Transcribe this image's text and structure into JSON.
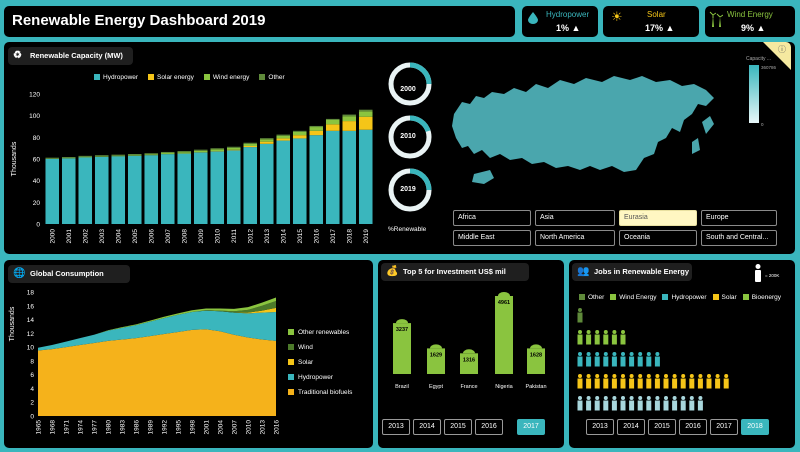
{
  "header": {
    "title": "Renewable Energy Dashboard 2019",
    "kpis": [
      {
        "label": "Hydropower",
        "value": "1%",
        "icon": "water-drop-icon"
      },
      {
        "label": "Solar",
        "value": "17%",
        "icon": "sun-icon"
      },
      {
        "label": "Wind Energy",
        "value": "9%",
        "icon": "wind-turbine-icon"
      }
    ]
  },
  "colors": {
    "hydro": "#3ab6bd",
    "solar": "#f5c518",
    "wind": "#8ac43f",
    "other": "#5f8a3a",
    "biofuel": "#f5b21b",
    "bg": "#000000"
  },
  "capacity_panel": {
    "title": "Renewable Capacity (MW)"
  },
  "donuts": {
    "years": [
      "2000",
      "2010",
      "2019"
    ],
    "label": "%Renewable",
    "shares": [
      0.25,
      0.2,
      0.25
    ]
  },
  "map_panel": {
    "legend_title": "Capacity ...",
    "legend_max": "360786",
    "legend_min": "0",
    "regions": [
      "Africa",
      "Asia",
      "Eurasia",
      "Europe",
      "Middle East",
      "North America",
      "Oceania",
      "South and Central..."
    ],
    "selected_region": "Eurasia"
  },
  "consumption_panel": {
    "title": "Global Consumption"
  },
  "investment_panel": {
    "title": "Top 5 for Investment US$ mil",
    "years": [
      "2013",
      "2014",
      "2015",
      "2016",
      "2017"
    ],
    "selected_year": "2017"
  },
  "jobs_panel": {
    "title": "Jobs in Renewable Energy",
    "unit": "= 200K",
    "legend": [
      "Other",
      "Wind Energy",
      "Hydropower",
      "Solar",
      "Bioenergy"
    ],
    "rows": [
      {
        "series": "Other",
        "count": 1
      },
      {
        "series": "Wind Energy",
        "count": 6
      },
      {
        "series": "Hydropower",
        "count": 10
      },
      {
        "series": "Solar",
        "count": 18
      },
      {
        "series": "Bioenergy",
        "count": 15
      }
    ],
    "years": [
      "2013",
      "2014",
      "2015",
      "2016",
      "2017",
      "2018"
    ],
    "selected_year": "2018"
  },
  "chart_data": [
    {
      "type": "bar",
      "title": "Renewable Capacity (MW)",
      "ylabel": "Thousands",
      "ylim": [
        0,
        120
      ],
      "yticks": [
        0,
        20,
        40,
        60,
        80,
        100,
        120
      ],
      "categories": [
        "2000",
        "2001",
        "2002",
        "2003",
        "2004",
        "2005",
        "2006",
        "2007",
        "2008",
        "2009",
        "2010",
        "2011",
        "2012",
        "2013",
        "2014",
        "2015",
        "2016",
        "2017",
        "2018",
        "2019"
      ],
      "series": [
        {
          "name": "Hydropower",
          "values": [
            60,
            60.5,
            61.5,
            62,
            62.5,
            63,
            63.5,
            64.5,
            65,
            66,
            67,
            68,
            71,
            74,
            77,
            79,
            82,
            86,
            86,
            87
          ]
        },
        {
          "name": "Solar energy",
          "values": [
            0,
            0,
            0,
            0,
            0,
            0,
            0,
            0,
            0.1,
            0.2,
            0.3,
            0.5,
            1,
            2,
            2,
            3,
            4,
            6,
            9,
            12
          ]
        },
        {
          "name": "Wind energy",
          "values": [
            0.2,
            0.3,
            0.4,
            0.5,
            0.5,
            0.6,
            0.8,
            1,
            1.2,
            1.4,
            1.6,
            1.8,
            2,
            2.2,
            2.5,
            3,
            3.5,
            4,
            4.5,
            5
          ]
        },
        {
          "name": "Other",
          "values": [
            1,
            1,
            1,
            1,
            1,
            1,
            1,
            1,
            1,
            1,
            1,
            1,
            1,
            1,
            1,
            1,
            1,
            1,
            1.5,
            1.5
          ]
        }
      ],
      "legend": "top"
    },
    {
      "type": "area",
      "title": "Global Consumption",
      "ylabel": "Thousands",
      "ylim": [
        0,
        18
      ],
      "yticks": [
        0,
        2,
        4,
        6,
        8,
        10,
        12,
        14,
        16,
        18
      ],
      "x": [
        "1965",
        "1968",
        "1971",
        "1974",
        "1977",
        "1980",
        "1983",
        "1986",
        "1989",
        "1992",
        "1995",
        "1998",
        "2001",
        "2004",
        "2007",
        "2010",
        "2013",
        "2016"
      ],
      "series": [
        {
          "name": "Traditional biofuels",
          "values": [
            9.5,
            9.7,
            10,
            10.3,
            10.6,
            10.9,
            11.1,
            11.3,
            11.6,
            11.9,
            12.2,
            12.5,
            12.6,
            12.3,
            11.8,
            11.4,
            11.1,
            10.9
          ]
        },
        {
          "name": "Hydropower",
          "values": [
            0.4,
            0.6,
            0.8,
            1,
            1.2,
            1.5,
            1.7,
            1.9,
            2.1,
            2.3,
            2.5,
            2.6,
            2.7,
            2.9,
            3.2,
            3.5,
            3.9,
            4.2
          ]
        },
        {
          "name": "Solar",
          "values": [
            0,
            0,
            0,
            0,
            0,
            0,
            0,
            0,
            0,
            0,
            0,
            0,
            0,
            0,
            0,
            0.1,
            0.3,
            0.6
          ]
        },
        {
          "name": "Wind",
          "values": [
            0,
            0,
            0,
            0,
            0,
            0,
            0,
            0,
            0,
            0,
            0,
            0,
            0.05,
            0.1,
            0.2,
            0.4,
            0.7,
            1
          ]
        },
        {
          "name": "Other renewables",
          "values": [
            0,
            0,
            0,
            0,
            0,
            0.05,
            0.1,
            0.1,
            0.15,
            0.2,
            0.2,
            0.25,
            0.25,
            0.3,
            0.35,
            0.4,
            0.45,
            0.5
          ]
        }
      ],
      "legend": "right"
    },
    {
      "type": "bar",
      "title": "Top 5 for Investment US$ mil",
      "categories": [
        "Brazil",
        "Egypt",
        "France",
        "Nigeria",
        "Pakistan"
      ],
      "values": [
        3237,
        1629,
        1316,
        4961,
        1628
      ],
      "data_labels": [
        "3237",
        "1629",
        "1316",
        "4961",
        "1628"
      ]
    }
  ]
}
